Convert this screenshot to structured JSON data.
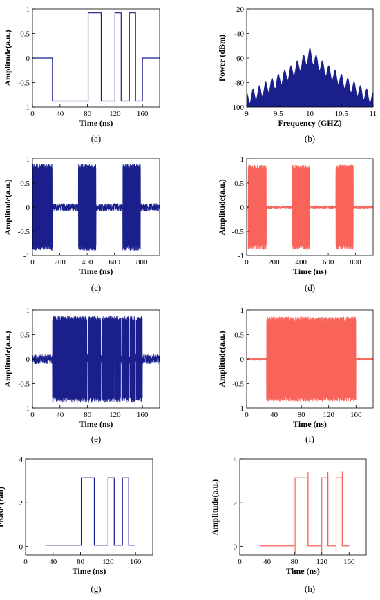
{
  "chart_data": [
    {
      "panel": "(a)",
      "type": "line",
      "color": "#1a1f8c",
      "xlabel": "Time (ns)",
      "ylabel": "Amplitude(a.u.)",
      "xlim": [
        0,
        185
      ],
      "ylim": [
        -1,
        1
      ],
      "xticks": [
        "0",
        "40",
        "80",
        "120",
        "160"
      ],
      "xtick_values": [
        0,
        40,
        80,
        120,
        160
      ],
      "yticks": [
        "-1",
        "-0.5",
        "0",
        "0.5",
        "1"
      ],
      "ytick_values": [
        -1,
        -0.5,
        0,
        0.5,
        1
      ],
      "x": [
        0,
        29,
        29,
        81,
        81,
        100,
        100,
        120,
        120,
        129,
        129,
        141,
        141,
        150,
        150,
        160,
        160,
        185
      ],
      "y": [
        0,
        0,
        -0.88,
        -0.88,
        0.92,
        0.92,
        -0.88,
        -0.88,
        0.92,
        0.92,
        -0.88,
        -0.88,
        0.92,
        0.92,
        -0.88,
        -0.88,
        0,
        0
      ]
    },
    {
      "panel": "(b)",
      "type": "line",
      "color": "#1a1f8c",
      "xlabel": "Frequency (GHZ)",
      "ylabel": "Power (dBm)",
      "xlim": [
        9,
        11
      ],
      "ylim": [
        -100,
        -20
      ],
      "xticks": [
        "9",
        "9.5",
        "10",
        "10.5",
        "11"
      ],
      "xtick_values": [
        9,
        9.5,
        10,
        10.5,
        11
      ],
      "yticks": [
        "-100",
        "-80",
        "-60",
        "-40",
        "-20"
      ],
      "ytick_values": [
        -100,
        -80,
        -60,
        -40,
        -20
      ],
      "center_frequency": 10,
      "peak_power": -51,
      "edge_power": -88,
      "floor_power": -98,
      "lobe_spacing": 0.1
    },
    {
      "panel": "(c)",
      "type": "line",
      "color": "#1a1f8c",
      "xlabel": "Time (ns)",
      "ylabel": "Amplitude(a.u.)",
      "xlim": [
        0,
        930
      ],
      "ylim": [
        -1,
        1
      ],
      "xticks": [
        "0",
        "200",
        "400",
        "600",
        "800"
      ],
      "xtick_values": [
        0,
        200,
        400,
        600,
        800
      ],
      "yticks": [
        "-1",
        "-0.5",
        "0",
        "0.5",
        "1"
      ],
      "ytick_values": [
        -1,
        -0.5,
        0,
        0.5,
        1
      ],
      "bursts": [
        [
          0,
          145
        ],
        [
          335,
          465
        ],
        [
          660,
          790
        ]
      ],
      "burst_amplitude": 0.9,
      "noise_amplitude": 0.08
    },
    {
      "panel": "(d)",
      "type": "line",
      "color": "#f8635a",
      "xlabel": "Time (ns)",
      "ylabel": "Amplitude(a.u.)",
      "xlim": [
        0,
        930
      ],
      "ylim": [
        -1,
        1
      ],
      "xticks": [
        "0",
        "200",
        "400",
        "600",
        "800"
      ],
      "xtick_values": [
        0,
        200,
        400,
        600,
        800
      ],
      "yticks": [
        "-1",
        "-0.5",
        "0",
        "0.5",
        "1"
      ],
      "ytick_values": [
        -1,
        -0.5,
        0,
        0.5,
        1
      ],
      "bursts": [
        [
          10,
          145
        ],
        [
          335,
          465
        ],
        [
          655,
          785
        ]
      ],
      "burst_amplitude": 0.88,
      "noise_amplitude": 0.03
    },
    {
      "panel": "(e)",
      "type": "line",
      "color": "#1a1f8c",
      "xlabel": "Time (ns)",
      "ylabel": "Amplitude(a.u.)",
      "xlim": [
        0,
        185
      ],
      "ylim": [
        -1,
        1
      ],
      "xticks": [
        "0",
        "40",
        "80",
        "120",
        "160"
      ],
      "xtick_values": [
        0,
        40,
        80,
        120,
        160
      ],
      "yticks": [
        "-1",
        "-0.5",
        "0",
        "0.5",
        "1"
      ],
      "ytick_values": [
        -1,
        -0.5,
        0,
        0.5,
        1
      ],
      "bursts": [
        [
          29,
          160
        ]
      ],
      "burst_amplitude": 0.88,
      "noise_amplitude": 0.1,
      "gaps": [
        80,
        100,
        120,
        129,
        141,
        150
      ]
    },
    {
      "panel": "(f)",
      "type": "line",
      "color": "#f8635a",
      "xlabel": "Time (ns)",
      "ylabel": "Amplitude(a.u.)",
      "xlim": [
        0,
        185
      ],
      "ylim": [
        -1,
        1
      ],
      "xticks": [
        "0",
        "40",
        "80",
        "120",
        "160"
      ],
      "xtick_values": [
        0,
        40,
        80,
        120,
        160
      ],
      "yticks": [
        "-1",
        "-0.5",
        "0",
        "0.5",
        "1"
      ],
      "ytick_values": [
        -1,
        -0.5,
        0,
        0.5,
        1
      ],
      "bursts": [
        [
          29,
          160
        ]
      ],
      "burst_amplitude": 0.87,
      "noise_amplitude": 0.03
    },
    {
      "panel": "(g)",
      "type": "line",
      "color": "#1a1f8c",
      "xlabel": "Time (ns)",
      "ylabel": "Phase (rad)",
      "xlim": [
        0,
        185
      ],
      "ylim": [
        -0.4,
        4
      ],
      "xticks": [
        "0",
        "40",
        "80",
        "120",
        "160"
      ],
      "xtick_values": [
        0,
        40,
        80,
        120,
        160
      ],
      "yticks": [
        "0",
        "2",
        "4"
      ],
      "ytick_values": [
        0,
        2,
        4
      ],
      "x": [
        29,
        81,
        81,
        100,
        100,
        120,
        120,
        129,
        129,
        141,
        141,
        150,
        150,
        160
      ],
      "y": [
        0.05,
        0.05,
        3.14,
        3.14,
        0.05,
        0.05,
        3.14,
        3.14,
        0.05,
        0.05,
        3.14,
        3.14,
        0.05,
        0.05
      ]
    },
    {
      "panel": "(h)",
      "type": "line",
      "color": "#f8635a",
      "xlabel": "Time (ns)",
      "ylabel": "Amplitude(a.u.)",
      "xlim": [
        0,
        185
      ],
      "ylim": [
        -0.4,
        4
      ],
      "xticks": [
        "0",
        "40",
        "80",
        "120",
        "160"
      ],
      "xtick_values": [
        0,
        40,
        80,
        120,
        160
      ],
      "yticks": [
        "0",
        "2",
        "4"
      ],
      "ytick_values": [
        0,
        2,
        4
      ],
      "x": [
        29,
        81,
        81,
        100,
        100,
        120,
        120,
        129,
        129,
        141,
        141,
        150,
        150,
        160
      ],
      "y": [
        0.02,
        0.02,
        3.14,
        3.14,
        0.02,
        0.02,
        3.14,
        3.14,
        0.02,
        0.02,
        3.14,
        3.14,
        0.02,
        0.02
      ],
      "spike_times": [
        81,
        100,
        120,
        129,
        141,
        150
      ],
      "spike_values": [
        -0.35,
        3.4,
        -0.3,
        3.4,
        -0.3,
        3.45
      ]
    }
  ]
}
